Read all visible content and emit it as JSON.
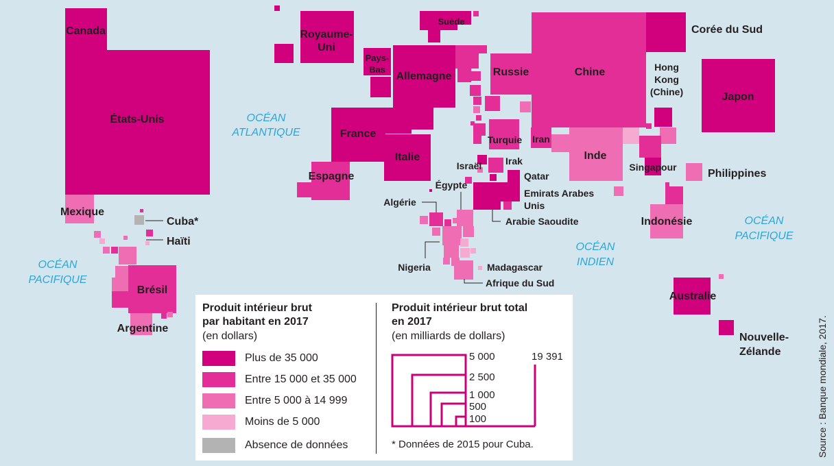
{
  "colors": {
    "c1": "#d1007d",
    "c2": "#e32d97",
    "c3": "#ee6db3",
    "c4": "#f6a9d1",
    "c5": "#b3b3b3",
    "ocean_text": "#2aa7d8",
    "background": "#d4e5ee"
  },
  "oceans": [
    {
      "line1": "OCÉAN",
      "line2": "ATLANTIQUE"
    },
    {
      "line1": "OCÉAN",
      "line2": "PACIFIQUE"
    },
    {
      "line1": "OCÉAN",
      "line2": "INDIEN"
    },
    {
      "line1": "OCÉAN",
      "line2": "PACIFIQUE"
    }
  ],
  "countries": {
    "canada": "Canada",
    "usa": "États-Unis",
    "mexique": "Mexique",
    "cuba": "Cuba*",
    "haiti": "Haïti",
    "bresil": "Brésil",
    "argentine": "Argentine",
    "royaume_uni_1": "Royaume-",
    "royaume_uni_2": "Uni",
    "suede": "Suède",
    "pays_bas_1": "Pays-",
    "pays_bas_2": "Bas",
    "allemagne": "Allemagne",
    "russie": "Russie",
    "france": "France",
    "espagne": "Espagne",
    "italie": "Italie",
    "turquie": "Turquie",
    "iran": "Iran",
    "israel": "Israël",
    "irak": "Irak",
    "qatar": "Qatar",
    "emirats_1": "Emirats Arabes",
    "emirats_2": "Unis",
    "egypte": "Égypte",
    "algerie": "Algérie",
    "arabie": "Arabie Saoudite",
    "nigeria": "Nigeria",
    "madagascar": "Madagascar",
    "afrique_sud": "Afrique du Sud",
    "chine": "Chine",
    "coree": "Corée du Sud",
    "hongkong_1": "Hong",
    "hongkong_2": "Kong",
    "hongkong_3": "(Chine)",
    "japon": "Japon",
    "inde": "Inde",
    "singapour": "Singapour",
    "philippines": "Philippines",
    "indonesie": "Indonésie",
    "australie": "Australie",
    "nz_1": "Nouvelle-",
    "nz_2": "Zélande"
  },
  "source": "Source : Banque mondiale, 2017.",
  "legend": {
    "left_title_1": "Produit intérieur brut",
    "left_title_2": "par habitant en 2017",
    "left_sub": "(en dollars)",
    "items": [
      {
        "label": "Plus de 35 000",
        "color": "#d1007d"
      },
      {
        "label": "Entre 15 000 et 35 000",
        "color": "#e32d97"
      },
      {
        "label": "Entre 5 000 à 14 999",
        "color": "#ee6db3"
      },
      {
        "label": "Moins de 5 000",
        "color": "#f6a9d1"
      },
      {
        "label": "Absence de données",
        "color": "#b3b3b3"
      }
    ],
    "right_title_1": "Produit intérieur brut total",
    "right_title_2": "en 2017",
    "right_sub": "(en milliards de dollars)",
    "scale": [
      "5 000",
      "2 500",
      "1 000",
      "500",
      "100"
    ],
    "scale_max": "19 391",
    "note": "* Données de 2015 pour Cuba."
  }
}
